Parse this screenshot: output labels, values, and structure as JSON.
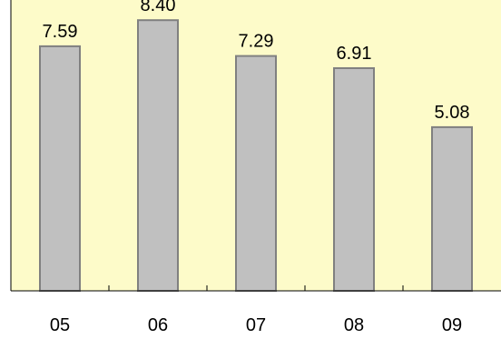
{
  "chart_data": {
    "type": "bar",
    "categories": [
      "05",
      "06",
      "07",
      "08",
      "09"
    ],
    "values": [
      7.59,
      8.4,
      7.29,
      6.91,
      5.08
    ],
    "data_labels": [
      "7.59",
      "8.40",
      "7.29",
      "6.91",
      "5.08"
    ],
    "title": "",
    "xlabel": "",
    "ylabel": "",
    "ylim": [
      0,
      9
    ],
    "grid": false,
    "legend": "none"
  },
  "colors": {
    "plot_background": "#fdfbc9",
    "bar_fill": "#c0c0c0",
    "bar_stroke": "#808080",
    "axis": "#000000"
  }
}
